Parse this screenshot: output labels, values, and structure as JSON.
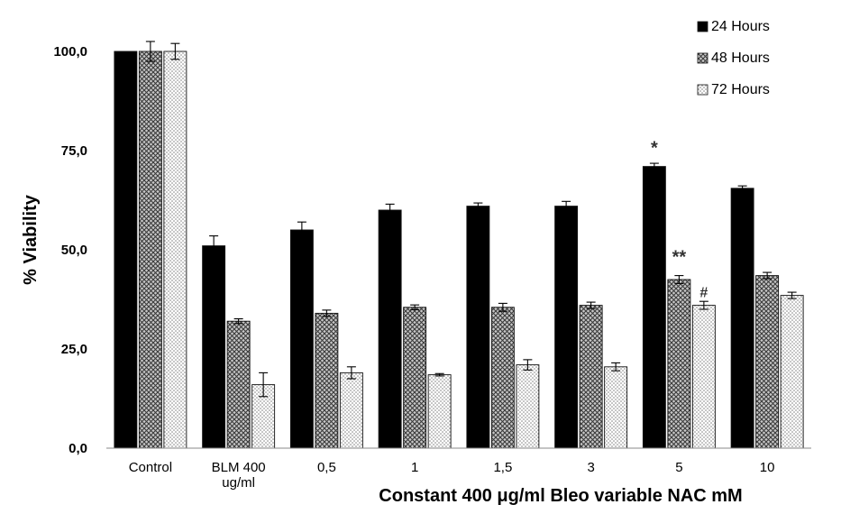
{
  "chart_data": {
    "type": "bar",
    "title": "",
    "xlabel": "Constant 400 μg/ml Bleo variable NAC mM",
    "ylabel": "% Viability",
    "ylim": [
      0,
      100
    ],
    "yticks": [
      "0,0",
      "25,0",
      "50,0",
      "75,0",
      "100,0"
    ],
    "categories": [
      [
        "Control"
      ],
      [
        "BLM 400",
        "ug/ml"
      ],
      [
        "0,5"
      ],
      [
        "1"
      ],
      [
        "1,5"
      ],
      [
        "3"
      ],
      [
        "5"
      ],
      [
        "10"
      ]
    ],
    "series": [
      {
        "name": "24 Hours",
        "pattern": "solid",
        "values": [
          100,
          51,
          55,
          60,
          61,
          61,
          71,
          65.5
        ],
        "errors": [
          0,
          2.5,
          2,
          1.5,
          0.8,
          1.2,
          0.8,
          0.6
        ]
      },
      {
        "name": "48 Hours",
        "pattern": "crosshatch",
        "values": [
          100,
          32,
          34,
          35.5,
          35.5,
          36,
          42.5,
          43.5
        ],
        "errors": [
          2.5,
          0.6,
          0.8,
          0.6,
          1,
          0.8,
          1,
          0.8
        ]
      },
      {
        "name": "72 Hours",
        "pattern": "dotted",
        "values": [
          100,
          16,
          19,
          18.5,
          21,
          20.5,
          36,
          38.5
        ],
        "errors": [
          2,
          3,
          1.5,
          0.3,
          1.3,
          1,
          1,
          0.8
        ]
      }
    ],
    "annotations": [
      {
        "text": "*",
        "category": 6,
        "series": 0,
        "value": 76
      },
      {
        "text": "**",
        "category": 6,
        "series": 1,
        "value": 48.5
      },
      {
        "text": "#",
        "category": 6,
        "series": 2,
        "value": 39
      }
    ],
    "legend_position": "top-right",
    "grid": false,
    "colors": {
      "bar_fill": "#000000",
      "hatch": "#555555",
      "dots": "#888888"
    }
  }
}
